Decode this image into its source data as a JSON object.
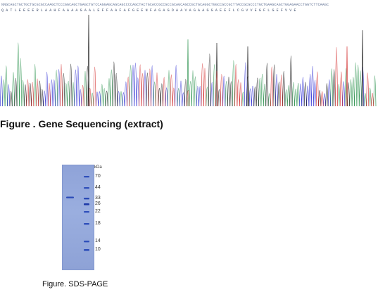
{
  "sequencing": {
    "caption": "Figure . Gene Sequencing (extract)",
    "sequence_top": "NNGCAGCTGCTGCTGCGCGCCAAGCTCCCGGCAGCTGAGCTGTCCAGGAGCAGCAGCCCCAGCTACTGCACCGCCGCCGCAGCAGCCGCTGCAGGCTGGCCGCCGCTTACCGCGCCCTGCTGAAGCAGCTGGAGAACCTGGTCTTCAAGC",
    "sequence_bottom": "Q A T L E E E E R L A A H F A A A A G A A L E F F A A F A F G E E N F A G A G D A A V A G A A G G A E E F L C G V V E G F L G E F V V E",
    "channel_colors": {
      "A": "#3a9a5a",
      "C": "#3b3bd6",
      "G": "#222222",
      "T": "#d63b3b"
    }
  },
  "gel": {
    "caption": "Figure. SDS-PAGE",
    "unit_label": "kDa",
    "marker_labels": [
      "70",
      "44",
      "33",
      "26",
      "22",
      "18",
      "14",
      "10"
    ],
    "band_color": "#2b4bb8",
    "lane_color": "#9aaede"
  }
}
